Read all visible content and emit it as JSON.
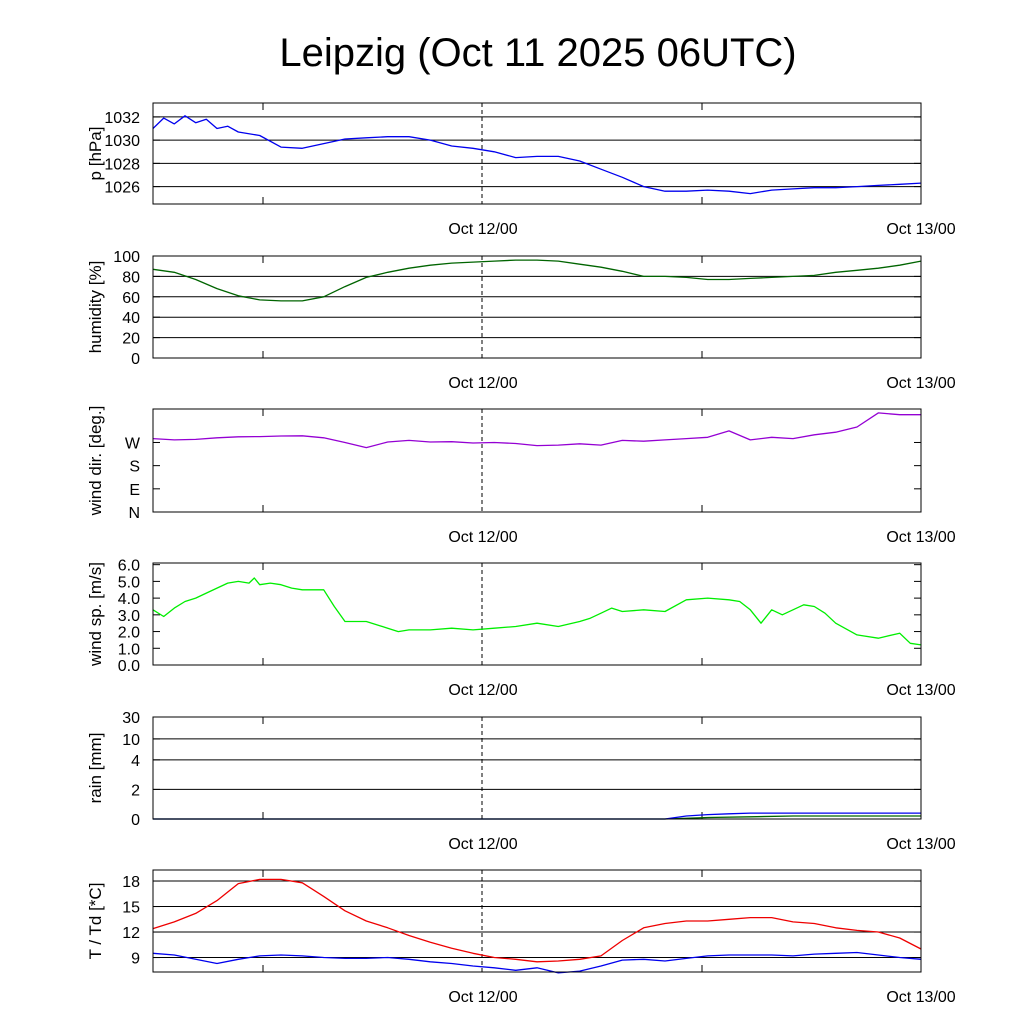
{
  "title": "Leipzig (Oct 11 2025 06UTC)",
  "chart_data": [
    {
      "type": "line",
      "ylabel": "p [hPa]",
      "x_tick_labels": [
        "Oct 12/00",
        "Oct 13/00"
      ],
      "ylim": [
        1024.5,
        1033.2
      ],
      "yticks": [
        1026,
        1028,
        1030,
        1032
      ],
      "ytick_labels": [
        "1026",
        "1028",
        "1030",
        "1032"
      ],
      "hgrid": [
        1026,
        1028,
        1030,
        1032
      ],
      "series": [
        {
          "color": "#0000ee",
          "x": [
            0,
            1,
            2,
            3,
            4,
            5,
            6,
            7,
            8,
            10,
            12,
            14,
            16,
            18,
            20,
            22,
            24,
            26,
            28,
            30,
            32,
            34,
            36,
            38,
            40,
            42,
            44,
            46,
            48,
            50,
            52,
            54,
            56,
            58,
            60,
            62,
            64,
            66,
            68,
            70,
            72
          ],
          "y": [
            1031.0,
            1031.9,
            1031.4,
            1032.1,
            1031.5,
            1031.8,
            1031.0,
            1031.2,
            1030.7,
            1030.4,
            1029.4,
            1029.3,
            1029.7,
            1030.1,
            1030.2,
            1030.3,
            1030.3,
            1030.0,
            1029.5,
            1029.3,
            1029.0,
            1028.5,
            1028.6,
            1028.6,
            1028.2,
            1027.5,
            1026.8,
            1026.0,
            1025.6,
            1025.6,
            1025.7,
            1025.6,
            1025.4,
            1025.7,
            1025.8,
            1025.9,
            1025.9,
            1026.0,
            1026.1,
            1026.2,
            1026.3
          ]
        }
      ]
    },
    {
      "type": "line",
      "ylabel": "humidity [%]",
      "x_tick_labels": [
        "Oct 12/00",
        "Oct 13/00"
      ],
      "ylim": [
        0,
        100
      ],
      "yticks": [
        0,
        20,
        40,
        60,
        80,
        100
      ],
      "ytick_labels": [
        "0",
        "20",
        "40",
        "60",
        "80",
        "100"
      ],
      "hgrid": [
        20,
        40,
        60,
        80
      ],
      "series": [
        {
          "color": "#006400",
          "x": [
            0,
            2,
            4,
            6,
            8,
            10,
            12,
            14,
            16,
            18,
            20,
            22,
            24,
            26,
            28,
            30,
            32,
            34,
            36,
            38,
            40,
            42,
            44,
            46,
            48,
            50,
            52,
            54,
            56,
            58,
            60,
            62,
            64,
            66,
            68,
            70,
            72
          ],
          "y": [
            87,
            84,
            77,
            68,
            61,
            57,
            56,
            56,
            60,
            70,
            79,
            84,
            88,
            91,
            93,
            94,
            95,
            96,
            96,
            95,
            92,
            89,
            85,
            80,
            80,
            79,
            77,
            77,
            78,
            79,
            80,
            81,
            84,
            86,
            88,
            91,
            95
          ]
        }
      ]
    },
    {
      "type": "line",
      "ylabel": "wind dir. [deg.]",
      "x_tick_labels": [
        "Oct 12/00",
        "Oct 13/00"
      ],
      "ylim": [
        0,
        400
      ],
      "yticks": [
        0,
        90,
        180,
        270
      ],
      "ytick_labels": [
        "N",
        "E",
        "S",
        "W"
      ],
      "hgrid": [],
      "series": [
        {
          "color": "#9400d3",
          "x": [
            0,
            2,
            4,
            6,
            8,
            10,
            12,
            14,
            16,
            18,
            20,
            22,
            24,
            26,
            28,
            30,
            32,
            34,
            36,
            38,
            40,
            42,
            44,
            46,
            48,
            50,
            52,
            54,
            56,
            58,
            60,
            62,
            64,
            66,
            68,
            70,
            72
          ],
          "y": [
            285,
            280,
            282,
            288,
            292,
            293,
            295,
            296,
            288,
            270,
            250,
            272,
            278,
            272,
            273,
            268,
            270,
            266,
            258,
            260,
            265,
            260,
            278,
            275,
            280,
            285,
            290,
            315,
            280,
            290,
            285,
            300,
            310,
            330,
            385,
            378,
            378
          ]
        }
      ]
    },
    {
      "type": "line",
      "ylabel": "wind sp. [m/s]",
      "x_tick_labels": [
        "Oct 12/00",
        "Oct 13/00"
      ],
      "ylim": [
        0,
        6.1
      ],
      "yticks": [
        0,
        1,
        2,
        3,
        4,
        5,
        6
      ],
      "ytick_labels": [
        "0.0",
        "1.0",
        "2.0",
        "3.0",
        "4.0",
        "5.0",
        "6.0"
      ],
      "hgrid": [],
      "series": [
        {
          "color": "#00ee00",
          "x": [
            0,
            1,
            2,
            3,
            4,
            5,
            6,
            7,
            8,
            9,
            9.5,
            10,
            11,
            12,
            13,
            14,
            15,
            16,
            17,
            18,
            20,
            22,
            23,
            24,
            26,
            28,
            30,
            32,
            34,
            36,
            38,
            40,
            41,
            42,
            43,
            44,
            46,
            48,
            50,
            52,
            54,
            55,
            56,
            57,
            58,
            59,
            60,
            61,
            62,
            63,
            64,
            66,
            68,
            70,
            71,
            72
          ],
          "y": [
            3.3,
            2.9,
            3.4,
            3.8,
            4.0,
            4.3,
            4.6,
            4.9,
            5.0,
            4.9,
            5.2,
            4.8,
            4.9,
            4.8,
            4.6,
            4.5,
            4.5,
            4.5,
            3.5,
            2.6,
            2.6,
            2.2,
            2.0,
            2.1,
            2.1,
            2.2,
            2.1,
            2.2,
            2.3,
            2.5,
            2.3,
            2.6,
            2.8,
            3.1,
            3.4,
            3.2,
            3.3,
            3.2,
            3.9,
            4.0,
            3.9,
            3.8,
            3.3,
            2.5,
            3.3,
            3.0,
            3.3,
            3.6,
            3.5,
            3.1,
            2.5,
            1.8,
            1.6,
            1.9,
            1.3,
            1.2
          ]
        }
      ]
    },
    {
      "type": "line",
      "ylabel": "rain [mm]",
      "x_tick_labels": [
        "Oct 12/00",
        "Oct 13/00"
      ],
      "ylim": [
        0,
        30
      ],
      "yscale": "stretched",
      "yticks": [
        0,
        2,
        4,
        10,
        30
      ],
      "ytick_labels": [
        "0",
        "2",
        "4",
        "10",
        "30"
      ],
      "hgrid": [
        2,
        4,
        10,
        30
      ],
      "series": [
        {
          "color": "#006400",
          "x": [
            0,
            48,
            52,
            56,
            60,
            64,
            68,
            72
          ],
          "y": [
            0,
            0,
            0.1,
            0.15,
            0.2,
            0.2,
            0.2,
            0.2
          ]
        },
        {
          "color": "#0000ee",
          "x": [
            0,
            48,
            50,
            52,
            54,
            56,
            60,
            64,
            68,
            72
          ],
          "y": [
            0,
            0,
            0.2,
            0.3,
            0.35,
            0.4,
            0.4,
            0.4,
            0.4,
            0.4
          ]
        }
      ]
    },
    {
      "type": "line",
      "ylabel": "T / Td [*C]",
      "x_tick_labels": [
        "Oct 12/00",
        "Oct 13/00"
      ],
      "ylim": [
        7.3,
        19.3
      ],
      "yticks": [
        9,
        12,
        15,
        18
      ],
      "ytick_labels": [
        "9",
        "12",
        "15",
        "18"
      ],
      "hgrid": [
        9,
        12,
        15,
        18
      ],
      "series": [
        {
          "color": "#ee0000",
          "x": [
            0,
            2,
            4,
            6,
            8,
            10,
            12,
            14,
            16,
            18,
            20,
            22,
            24,
            26,
            28,
            30,
            32,
            34,
            36,
            38,
            40,
            42,
            44,
            46,
            48,
            50,
            52,
            54,
            56,
            58,
            60,
            62,
            64,
            66,
            68,
            70,
            72
          ],
          "y": [
            12.4,
            13.2,
            14.2,
            15.7,
            17.7,
            18.2,
            18.2,
            17.8,
            16.2,
            14.5,
            13.3,
            12.5,
            11.6,
            10.8,
            10.1,
            9.5,
            9.0,
            8.8,
            8.5,
            8.6,
            8.8,
            9.2,
            11.0,
            12.5,
            13.0,
            13.3,
            13.3,
            13.5,
            13.7,
            13.7,
            13.2,
            13.0,
            12.5,
            12.2,
            12.0,
            11.3,
            10.0
          ]
        },
        {
          "color": "#0000ee",
          "x": [
            0,
            2,
            4,
            6,
            8,
            10,
            12,
            14,
            16,
            18,
            20,
            22,
            24,
            26,
            28,
            30,
            32,
            34,
            36,
            38,
            40,
            42,
            44,
            46,
            48,
            50,
            52,
            54,
            56,
            58,
            60,
            62,
            64,
            66,
            68,
            70,
            72
          ],
          "y": [
            9.5,
            9.3,
            8.8,
            8.3,
            8.8,
            9.2,
            9.3,
            9.2,
            9.0,
            8.9,
            8.9,
            9.0,
            8.8,
            8.5,
            8.3,
            8.0,
            7.8,
            7.5,
            7.8,
            7.2,
            7.4,
            8.0,
            8.7,
            8.8,
            8.6,
            8.9,
            9.2,
            9.3,
            9.3,
            9.3,
            9.2,
            9.4,
            9.5,
            9.6,
            9.3,
            9.0,
            8.8
          ]
        }
      ]
    }
  ]
}
